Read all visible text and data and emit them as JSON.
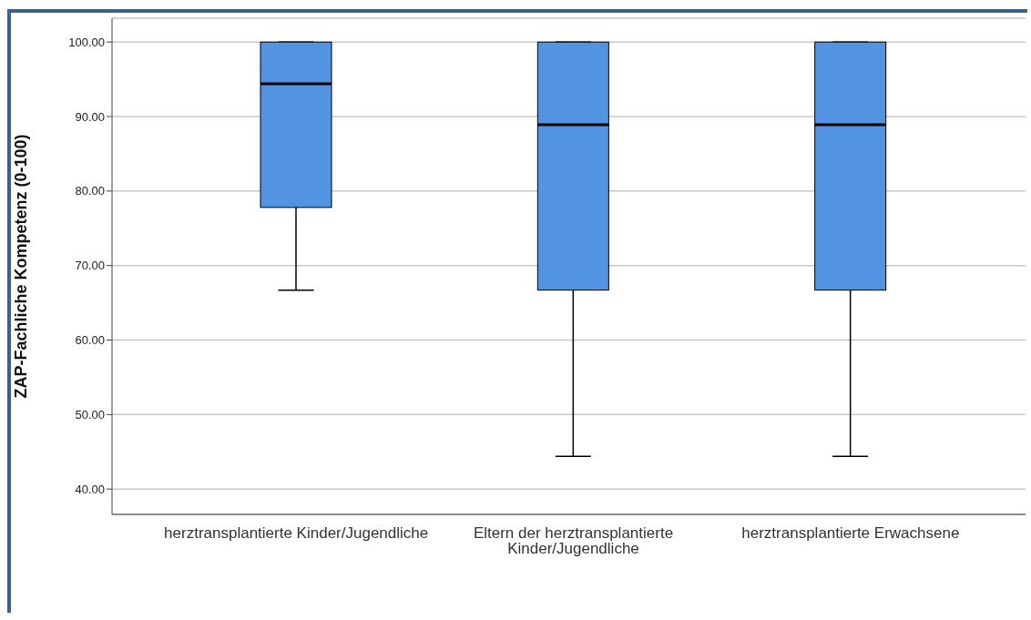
{
  "chart_data": {
    "type": "box",
    "ylabel": "ZAP-Fachliche Kompetenz (0-100)",
    "categories": [
      "herztransplantierte Kinder/Jugendliche",
      "Eltern der herztransplantierte Kinder/Jugendliche",
      "herztransplantierte Erwachsene"
    ],
    "boxes": [
      {
        "low": 66.7,
        "q1": 77.8,
        "median": 94.4,
        "q3": 100,
        "high": 100
      },
      {
        "low": 44.4,
        "q1": 66.7,
        "median": 88.9,
        "q3": 100,
        "high": 100
      },
      {
        "low": 44.4,
        "q1": 66.7,
        "median": 88.9,
        "q3": 100,
        "high": 100
      }
    ],
    "color": "#5294e2",
    "ylim": [
      36.6,
      103.2
    ],
    "yticks": [
      {
        "value": 40,
        "label": "40.00"
      },
      {
        "value": 50,
        "label": "50.00"
      },
      {
        "value": 60,
        "label": "60.00"
      },
      {
        "value": 70,
        "label": "70.00"
      },
      {
        "value": 80,
        "label": "80.00"
      },
      {
        "value": 90,
        "label": "90.00"
      },
      {
        "value": 100,
        "label": "100.00"
      }
    ],
    "grid": "y"
  }
}
